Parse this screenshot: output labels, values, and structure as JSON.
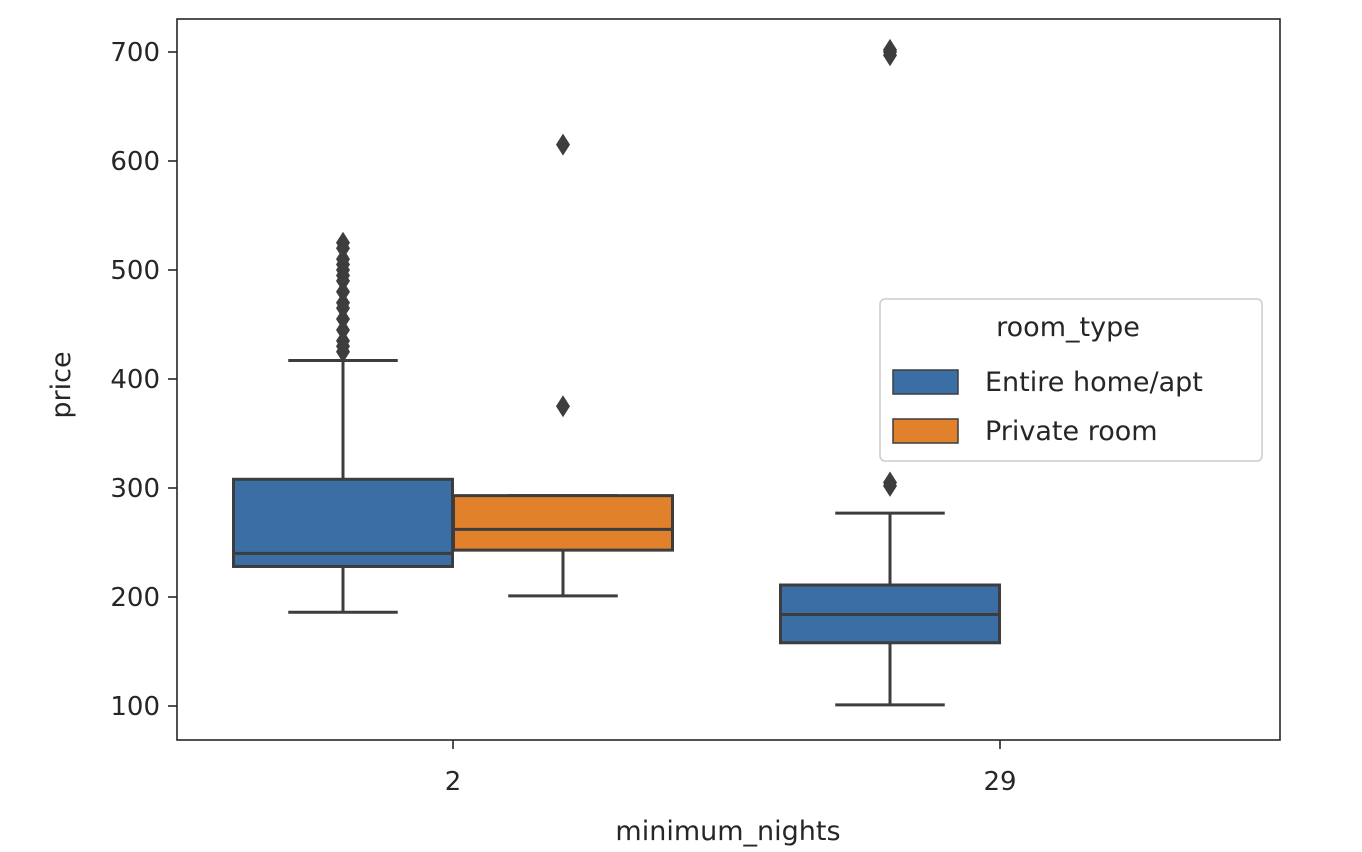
{
  "chart_data": {
    "type": "box",
    "xlabel": "minimum_nights",
    "ylabel": "price",
    "categories": [
      "2",
      "29"
    ],
    "yticks": [
      100,
      200,
      300,
      400,
      500,
      600,
      700
    ],
    "ylim": [
      70,
      730
    ],
    "grid": false,
    "legend": {
      "title": "room_type",
      "placement": "center-right",
      "entries": [
        {
          "label": "Entire home/apt",
          "color": "#3a6ea5"
        },
        {
          "label": "Private room",
          "color": "#e1812c"
        }
      ]
    },
    "series": [
      {
        "name": "Entire home/apt",
        "color": "#3a6ea5",
        "boxes": [
          {
            "category": "2",
            "whisker_low": 186,
            "q1": 228,
            "median": 240,
            "q3": 308,
            "whisker_high": 417,
            "outliers": [
              425,
              430,
              435,
              445,
              455,
              465,
              470,
              480,
              490,
              495,
              500,
              505,
              510,
              520,
              525
            ]
          },
          {
            "category": "29",
            "whisker_low": 101,
            "q1": 158,
            "median": 184,
            "q3": 211,
            "whisker_high": 277,
            "outliers": [
              302,
              305,
              697,
              700,
              702
            ]
          }
        ]
      },
      {
        "name": "Private room",
        "color": "#e1812c",
        "boxes": [
          {
            "category": "2",
            "whisker_low": 201,
            "q1": 243,
            "median": 262,
            "q3": 293,
            "whisker_high": 293,
            "outliers": [
              375,
              615
            ]
          }
        ]
      }
    ]
  }
}
